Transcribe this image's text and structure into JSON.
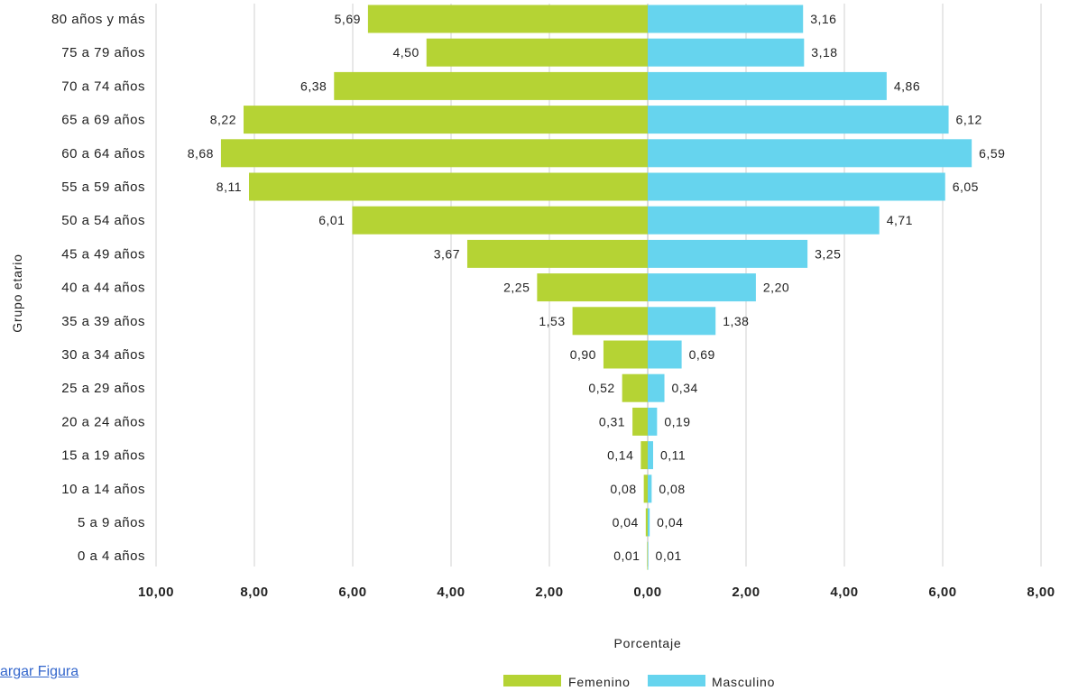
{
  "download_link": "argar Figura",
  "chart_data": {
    "type": "bar",
    "orientation": "horizontal-pyramid",
    "ylabel": "Grupo etario",
    "xlabel": "Porcentaje",
    "categories": [
      "80 años y más",
      "75 a 79 años",
      "70 a 74 años",
      "65 a 69 años",
      "60 a 64 años",
      "55 a 59 años",
      "50 a 54 años",
      "45 a 49 años",
      "40 a 44 años",
      "35 a 39 años",
      "30 a 34 años",
      "25 a 29 años",
      "20 a 24 años",
      "15 a 19 años",
      "10 a 14 años",
      "5 a 9 años",
      "0 a 4 años"
    ],
    "series": [
      {
        "name": "Femenino",
        "color": "#b5d334",
        "side": "left",
        "values": [
          5.69,
          4.5,
          6.38,
          8.22,
          8.68,
          8.11,
          6.01,
          3.67,
          2.25,
          1.53,
          0.9,
          0.52,
          0.31,
          0.14,
          0.08,
          0.04,
          0.01
        ],
        "value_labels": [
          "5,69",
          "4,50",
          "6,38",
          "8,22",
          "8,68",
          "8,11",
          "6,01",
          "3,67",
          "2,25",
          "1,53",
          "0,90",
          "0,52",
          "0,31",
          "0,14",
          "0,08",
          "0,04",
          "0,01"
        ]
      },
      {
        "name": "Masculino",
        "color": "#66d4ee",
        "side": "right",
        "values": [
          3.16,
          3.18,
          4.86,
          6.12,
          6.59,
          6.05,
          4.71,
          3.25,
          2.2,
          1.38,
          0.69,
          0.34,
          0.19,
          0.11,
          0.08,
          0.04,
          0.01
        ],
        "value_labels": [
          "3,16",
          "3,18",
          "4,86",
          "6,12",
          "6,59",
          "6,05",
          "4,71",
          "3,25",
          "2,20",
          "1,38",
          "0,69",
          "0,34",
          "0,19",
          "0,11",
          "0,08",
          "0,04",
          "0,01"
        ]
      }
    ],
    "x_ticks": [
      -10,
      -8,
      -6,
      -4,
      -2,
      0,
      2,
      4,
      6,
      8
    ],
    "x_tick_labels": [
      "10,00",
      "8,00",
      "6,00",
      "4,00",
      "2,00",
      "0,00",
      "2,00",
      "4,00",
      "6,00",
      "8,00"
    ],
    "xlim": [
      -10,
      8
    ],
    "grid": true,
    "legend_position": "bottom"
  }
}
